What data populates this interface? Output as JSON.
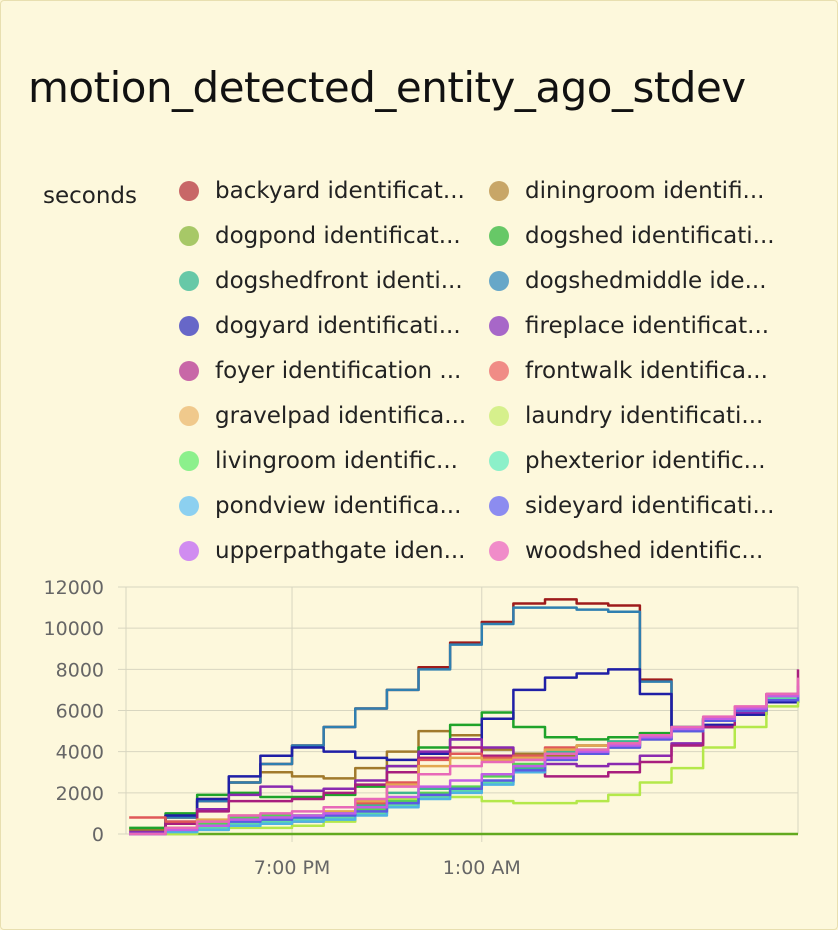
{
  "card": {
    "title": "motion_detected_entity_ago_stdev",
    "unit": "seconds"
  },
  "legend": [
    {
      "label": "backyard identificat...",
      "color": "#c86767"
    },
    {
      "label": "diningroom identifi...",
      "color": "#c8a667"
    },
    {
      "label": "dogpond identificat...",
      "color": "#a7c867"
    },
    {
      "label": "dogshed identificati...",
      "color": "#67c867"
    },
    {
      "label": "dogshedfront identi...",
      "color": "#67c8a7"
    },
    {
      "label": "dogshedmiddle ide...",
      "color": "#67a7c8"
    },
    {
      "label": "dogyard identificati...",
      "color": "#6767c8"
    },
    {
      "label": "fireplace identificat...",
      "color": "#a767c8"
    },
    {
      "label": "foyer identification ...",
      "color": "#c867a7"
    },
    {
      "label": "frontwalk identifica...",
      "color": "#f08c86"
    },
    {
      "label": "gravelpad identifica...",
      "color": "#f0c98c"
    },
    {
      "label": "laundry identificati...",
      "color": "#d6f08c"
    },
    {
      "label": "livingroom identific...",
      "color": "#8cf08c"
    },
    {
      "label": "phexterior identific...",
      "color": "#8cf0c9"
    },
    {
      "label": "pondview identifica...",
      "color": "#8cd0f0"
    },
    {
      "label": "sideyard identificati...",
      "color": "#8c8cf0"
    },
    {
      "label": "upperpathgate iden...",
      "color": "#d08cf0"
    },
    {
      "label": "woodshed identific...",
      "color": "#f08cc9"
    }
  ],
  "chart_data": {
    "type": "line",
    "title": "motion_detected_entity_ago_stdev",
    "ylabel": "seconds",
    "ylim": [
      0,
      12000
    ],
    "yticks": [
      "0",
      "2000",
      "4000",
      "6000",
      "8000",
      "10000",
      "12000"
    ],
    "xticks": [
      "7:00 PM",
      "1:00 AM"
    ],
    "xlim_hours": [
      13.75,
      11.0
    ],
    "grid": true,
    "x_hours": [
      14,
      15,
      16,
      17,
      18,
      19,
      20,
      21,
      22,
      23,
      24,
      25,
      26,
      27,
      28,
      29,
      30,
      31,
      32,
      33,
      34,
      35
    ],
    "series": [
      {
        "name": "backyard identificat...",
        "color": "#9e1b1b",
        "values": [
          0,
          800,
          1600,
          2500,
          3400,
          4300,
          5200,
          6100,
          7000,
          8100,
          9300,
          10300,
          11200,
          11400,
          11200,
          11100,
          7500,
          5000,
          5200,
          5800,
          6400,
          6900
        ]
      },
      {
        "name": "diningroom identifi...",
        "color": "#a17a2c",
        "values": [
          200,
          900,
          1700,
          2500,
          3000,
          2800,
          2700,
          3200,
          4000,
          5000,
          4800,
          4100,
          3900,
          3800,
          3900,
          4200,
          4700,
          5100,
          5500,
          6000,
          6400,
          6800
        ]
      },
      {
        "name": "dogpond identificat...",
        "color": "#62a91f",
        "values": [
          0,
          0,
          0,
          0,
          0,
          0,
          0,
          0,
          0,
          0,
          0,
          0,
          0,
          0,
          0,
          0,
          0,
          0,
          0,
          0,
          0,
          0
        ]
      },
      {
        "name": "dogshed identificati...",
        "color": "#1fa32a",
        "values": [
          300,
          1000,
          1900,
          2000,
          1800,
          1800,
          1900,
          2300,
          3300,
          4200,
          5300,
          5900,
          5200,
          4700,
          4600,
          4700,
          4900,
          5200,
          5600,
          6000,
          6400,
          6800
        ]
      },
      {
        "name": "dogshedfront identi...",
        "color": "#3fb58f",
        "values": [
          0,
          300,
          500,
          600,
          700,
          800,
          1000,
          1400,
          2000,
          2200,
          2200,
          2500,
          3200,
          4000,
          4300,
          4500,
          4800,
          5200,
          5600,
          6000,
          6400,
          6800
        ]
      },
      {
        "name": "dogshedmiddle ide...",
        "color": "#2f7fb0",
        "values": [
          0,
          800,
          1600,
          2500,
          3400,
          4300,
          5200,
          6100,
          7000,
          8000,
          9200,
          10200,
          11000,
          11000,
          10900,
          10800,
          7400,
          5000,
          5200,
          5800,
          6400,
          6900
        ]
      },
      {
        "name": "dogyard identificati...",
        "color": "#1f1fa6",
        "values": [
          0,
          900,
          1700,
          2800,
          3800,
          4200,
          4000,
          3700,
          3600,
          3900,
          4600,
          5600,
          7000,
          7600,
          7800,
          8000,
          6800,
          5100,
          5300,
          5800,
          6400,
          7000
        ]
      },
      {
        "name": "fireplace identificat...",
        "color": "#8a2ab0",
        "values": [
          100,
          600,
          1200,
          1900,
          2300,
          2100,
          2200,
          2600,
          3300,
          4000,
          4600,
          4200,
          3600,
          3400,
          3300,
          3400,
          3800,
          4400,
          5200,
          5900,
          6500,
          7200
        ]
      },
      {
        "name": "foyer identification ...",
        "color": "#a81e7e",
        "values": [
          0,
          500,
          1100,
          1600,
          1600,
          1700,
          2000,
          2400,
          3000,
          3700,
          4200,
          3800,
          3100,
          2800,
          2800,
          3000,
          3500,
          4300,
          5200,
          6000,
          6800,
          8000
        ]
      },
      {
        "name": "frontwalk identifica...",
        "color": "#e05858",
        "values": [
          800,
          600,
          500,
          500,
          500,
          600,
          900,
          1500,
          2500,
          3600,
          3900,
          3700,
          3800,
          4200,
          4300,
          4400,
          4600,
          5000,
          5600,
          6100,
          6600,
          7000
        ]
      },
      {
        "name": "gravelpad identifica...",
        "color": "#e3a850",
        "values": [
          0,
          300,
          700,
          900,
          900,
          900,
          1100,
          1600,
          2400,
          3300,
          3700,
          3600,
          3700,
          4100,
          4300,
          4400,
          4700,
          5100,
          5600,
          6100,
          6600,
          7000
        ]
      },
      {
        "name": "laundry identificati...",
        "color": "#b4e84a",
        "values": [
          0,
          0,
          200,
          300,
          300,
          400,
          600,
          1000,
          1700,
          1800,
          1800,
          1600,
          1500,
          1500,
          1600,
          1900,
          2500,
          3200,
          4200,
          5200,
          6200,
          7000
        ]
      },
      {
        "name": "livingroom identific...",
        "color": "#55d155",
        "values": [
          0,
          200,
          500,
          800,
          900,
          900,
          1000,
          1200,
          1600,
          2000,
          2300,
          2800,
          3400,
          3900,
          4100,
          4300,
          4700,
          5100,
          5500,
          6000,
          6500,
          6900
        ]
      },
      {
        "name": "phexterior identific...",
        "color": "#5ed9a8",
        "values": [
          0,
          100,
          300,
          500,
          600,
          700,
          800,
          1000,
          1400,
          1800,
          2100,
          2500,
          3100,
          3700,
          4000,
          4300,
          4700,
          5100,
          5600,
          6100,
          6600,
          7000
        ]
      },
      {
        "name": "pondview identifica...",
        "color": "#4fb3e3",
        "values": [
          0,
          100,
          200,
          400,
          500,
          600,
          700,
          900,
          1300,
          1700,
          2000,
          2400,
          3000,
          3600,
          3900,
          4200,
          4600,
          5000,
          5500,
          6000,
          6500,
          6900
        ]
      },
      {
        "name": "sideyard identificati...",
        "color": "#5b5be0",
        "values": [
          0,
          200,
          400,
          600,
          700,
          800,
          900,
          1100,
          1500,
          1900,
          2200,
          2600,
          3100,
          3600,
          3900,
          4200,
          4600,
          5000,
          5500,
          6000,
          6500,
          6900
        ]
      },
      {
        "name": "upperpathgate iden...",
        "color": "#c15ee6",
        "values": [
          0,
          200,
          400,
          700,
          800,
          900,
          1000,
          1300,
          1800,
          2300,
          2600,
          2900,
          3300,
          3700,
          4000,
          4300,
          4700,
          5100,
          5600,
          6100,
          6700,
          7300
        ]
      },
      {
        "name": "woodshed identific...",
        "color": "#e869b8",
        "values": [
          0,
          300,
          600,
          900,
          1000,
          1100,
          1300,
          1700,
          2300,
          2900,
          3300,
          3500,
          3600,
          3900,
          4100,
          4400,
          4800,
          5200,
          5700,
          6200,
          6800,
          7600
        ]
      }
    ]
  }
}
